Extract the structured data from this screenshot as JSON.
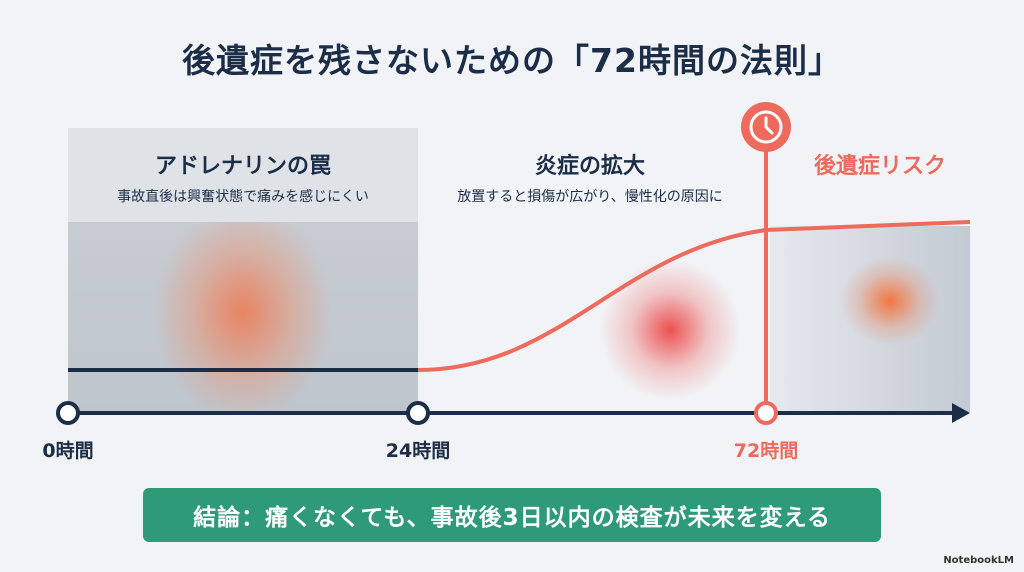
{
  "title": "後遺症を残さないための「72時間の法則」",
  "phases": [
    {
      "heading": "アドレナリンの罠",
      "description": "事故直後は興奮状態で痛みを感じにくい"
    },
    {
      "heading": "炎症の拡大",
      "description": "放置すると損傷が広がり、慢性化の原因に"
    },
    {
      "heading": "後遺症リスク"
    }
  ],
  "timeline": {
    "markers": [
      "0時間",
      "24時間",
      "72時間"
    ],
    "clock_icon": "clock-icon"
  },
  "conclusion": "結論：痛くなくても、事故後3日以内の検査が未来を変える",
  "brand": "NotebookLM",
  "colors": {
    "navy": "#1b2d47",
    "accent_red": "#ee6a5d",
    "green": "#2f9a78",
    "background": "#f1f3f6"
  }
}
